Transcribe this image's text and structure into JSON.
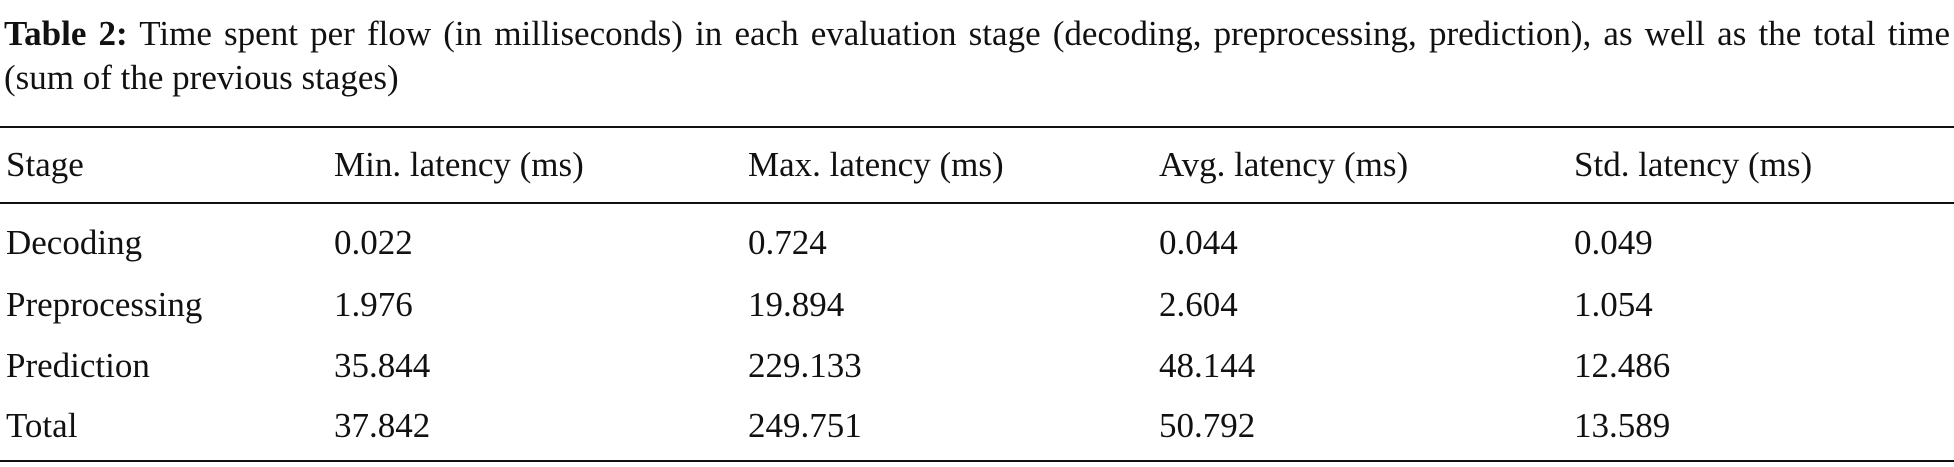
{
  "caption": {
    "label": "Table 2:",
    "text": "Time spent per flow (in milliseconds) in each evaluation stage (decoding, preprocessing, prediction), as well as the total time (sum of the previous stages)"
  },
  "table": {
    "header": [
      "Stage",
      "Min. latency (ms)",
      "Max. latency (ms)",
      "Avg. latency (ms)",
      "Std. latency (ms)"
    ],
    "rows": [
      [
        "Decoding",
        "0.022",
        "0.724",
        "0.044",
        "0.049"
      ],
      [
        "Preprocessing",
        "1.976",
        "19.894",
        "2.604",
        "1.054"
      ],
      [
        "Prediction",
        "35.844",
        "229.133",
        "48.144",
        "12.486"
      ],
      [
        "Total",
        "37.842",
        "249.751",
        "50.792",
        "13.589"
      ]
    ]
  }
}
